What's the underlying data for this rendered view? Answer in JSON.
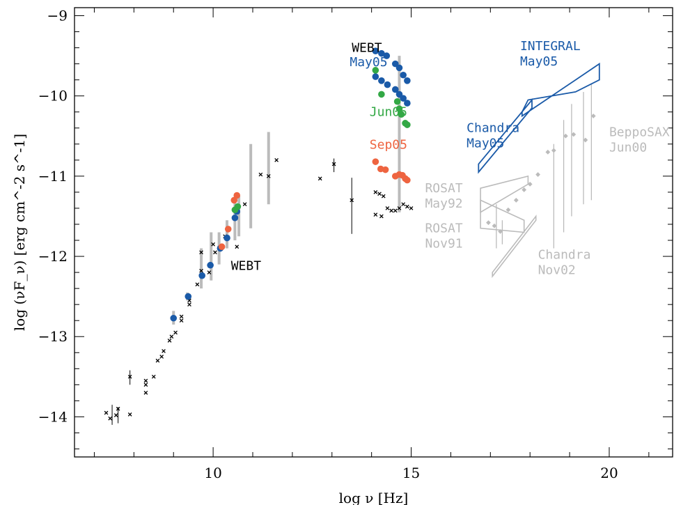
{
  "chart_data": {
    "type": "scatter",
    "xlabel": "log ν [Hz]",
    "ylabel": "log (νF_ν) [erg cm^-2 s^-1]",
    "xlim": [
      6.5,
      21.6
    ],
    "ylim": [
      -14.5,
      -8.9
    ],
    "x_ticks": [
      10,
      15,
      20
    ],
    "y_ticks": [
      -14,
      -13,
      -12,
      -11,
      -10,
      -9
    ],
    "colors": {
      "may05": "#1a5aa8",
      "jun05": "#33a845",
      "sep05": "#ee6440",
      "historic": "#bbbbbb",
      "archive": "#000000"
    },
    "series": [
      {
        "name": "May05",
        "color": "#1a5aa8",
        "points": [
          [
            9.0,
            -12.77
          ],
          [
            9.37,
            -12.5
          ],
          [
            9.72,
            -12.24
          ],
          [
            9.93,
            -12.11
          ],
          [
            10.18,
            -11.9
          ],
          [
            10.35,
            -11.77
          ],
          [
            10.55,
            -11.52
          ],
          [
            10.6,
            -11.44
          ],
          [
            14.1,
            -9.44
          ],
          [
            14.25,
            -9.47
          ],
          [
            14.38,
            -9.5
          ],
          [
            14.6,
            -9.6
          ],
          [
            14.7,
            -9.65
          ],
          [
            14.8,
            -9.74
          ],
          [
            14.9,
            -9.81
          ],
          [
            14.1,
            -9.76
          ],
          [
            14.25,
            -9.81
          ],
          [
            14.4,
            -9.86
          ],
          [
            14.6,
            -9.92
          ],
          [
            14.7,
            -9.98
          ],
          [
            14.8,
            -10.03
          ],
          [
            14.9,
            -10.09
          ]
        ]
      },
      {
        "name": "Jun05",
        "color": "#33a845",
        "points": [
          [
            10.55,
            -11.42
          ],
          [
            10.62,
            -11.38
          ],
          [
            14.1,
            -9.68
          ],
          [
            14.25,
            -9.98
          ],
          [
            14.65,
            -10.07
          ],
          [
            14.7,
            -10.16
          ],
          [
            14.75,
            -10.23
          ],
          [
            14.85,
            -10.34
          ],
          [
            14.9,
            -10.36
          ]
        ]
      },
      {
        "name": "Sep05",
        "color": "#ee6440",
        "points": [
          [
            10.22,
            -11.88
          ],
          [
            10.38,
            -11.66
          ],
          [
            10.53,
            -11.3
          ],
          [
            10.6,
            -11.24
          ],
          [
            14.1,
            -10.82
          ],
          [
            14.23,
            -10.91
          ],
          [
            14.35,
            -10.92
          ],
          [
            14.6,
            -11.0
          ],
          [
            14.7,
            -10.98
          ],
          [
            14.78,
            -10.99
          ],
          [
            14.85,
            -11.03
          ],
          [
            14.9,
            -11.05
          ]
        ]
      }
    ],
    "archive_points": [
      [
        7.3,
        -13.95
      ],
      [
        7.4,
        -14.02
      ],
      [
        7.55,
        -13.98
      ],
      [
        7.6,
        -13.9
      ],
      [
        7.9,
        -13.97
      ],
      [
        7.9,
        -13.5
      ],
      [
        8.3,
        -13.7
      ],
      [
        8.3,
        -13.55
      ],
      [
        8.3,
        -13.6
      ],
      [
        8.5,
        -13.5
      ],
      [
        8.6,
        -13.3
      ],
      [
        8.7,
        -13.25
      ],
      [
        8.75,
        -13.18
      ],
      [
        8.9,
        -13.05
      ],
      [
        8.95,
        -13.0
      ],
      [
        9.05,
        -12.95
      ],
      [
        9.2,
        -12.8
      ],
      [
        9.2,
        -12.75
      ],
      [
        9.4,
        -12.55
      ],
      [
        9.4,
        -12.6
      ],
      [
        9.6,
        -12.35
      ],
      [
        9.7,
        -12.18
      ],
      [
        9.7,
        -11.95
      ],
      [
        9.9,
        -12.2
      ],
      [
        10.0,
        -11.85
      ],
      [
        10.05,
        -11.95
      ],
      [
        10.3,
        -11.75
      ],
      [
        10.6,
        -11.88
      ],
      [
        10.8,
        -11.35
      ],
      [
        11.2,
        -10.98
      ],
      [
        11.4,
        -11.0
      ],
      [
        11.6,
        -10.8
      ],
      [
        12.7,
        -11.03
      ],
      [
        13.05,
        -10.85
      ],
      [
        13.5,
        -11.3
      ],
      [
        14.1,
        -11.2
      ],
      [
        14.2,
        -11.22
      ],
      [
        14.3,
        -11.25
      ],
      [
        14.1,
        -11.48
      ],
      [
        14.25,
        -11.5
      ],
      [
        14.4,
        -11.4
      ],
      [
        14.5,
        -11.43
      ],
      [
        14.6,
        -11.43
      ],
      [
        14.7,
        -11.4
      ],
      [
        14.8,
        -11.35
      ],
      [
        14.9,
        -11.38
      ],
      [
        15.0,
        -11.4
      ]
    ],
    "archive_errorbars": [
      [
        7.45,
        -14.1,
        -13.85
      ],
      [
        7.6,
        -14.08,
        -13.88
      ],
      [
        7.9,
        -13.6,
        -13.42
      ],
      [
        13.05,
        -10.95,
        -10.78
      ],
      [
        13.5,
        -11.72,
        -11.02
      ]
    ],
    "historic_errorbars": [
      [
        9.0,
        -12.85,
        -12.68
      ],
      [
        9.35,
        -12.55,
        -12.45
      ],
      [
        9.7,
        -12.4,
        -11.9
      ],
      [
        9.95,
        -12.3,
        -11.7
      ],
      [
        10.15,
        -12.1,
        -11.7
      ],
      [
        10.35,
        -11.9,
        -11.55
      ],
      [
        10.55,
        -11.8,
        -11.3
      ],
      [
        10.65,
        -11.75,
        -11.25
      ],
      [
        10.95,
        -11.65,
        -10.6
      ],
      [
        11.4,
        -11.35,
        -10.45
      ],
      [
        14.7,
        -11.45,
        -9.5
      ]
    ],
    "beppo_points": [
      [
        16.95,
        -11.58
      ],
      [
        17.1,
        -11.62
      ],
      [
        17.25,
        -11.69
      ],
      [
        17.45,
        -11.42
      ],
      [
        17.65,
        -11.3
      ],
      [
        17.85,
        -11.17
      ],
      [
        18.0,
        -11.1
      ],
      [
        18.2,
        -10.98
      ],
      [
        18.45,
        -10.7
      ],
      [
        18.6,
        -10.68
      ],
      [
        18.9,
        -10.5
      ],
      [
        19.1,
        -10.48
      ],
      [
        19.4,
        -10.55
      ],
      [
        19.6,
        -10.25
      ]
    ],
    "beppo_errorbars": [
      [
        17.15,
        -11.9,
        -11.35
      ],
      [
        17.3,
        -11.85,
        -11.55
      ],
      [
        18.6,
        -11.9,
        -10.6
      ],
      [
        18.85,
        -11.7,
        -10.3
      ],
      [
        19.05,
        -11.5,
        -10.1
      ],
      [
        19.35,
        -11.35,
        -9.95
      ],
      [
        19.55,
        -11.3,
        -9.85
      ]
    ],
    "bowties": [
      {
        "name": "INTEGRAL May05",
        "color": "#1a5aa8",
        "polygon": [
          [
            17.8,
            -10.2
          ],
          [
            17.8,
            -10.25
          ],
          [
            19.15,
            -9.8
          ],
          [
            19.75,
            -9.6
          ],
          [
            19.75,
            -9.8
          ],
          [
            19.15,
            -9.95
          ],
          [
            17.95,
            -10.05
          ]
        ]
      },
      {
        "name": "Chandra May05",
        "color": "#1a5aa8",
        "polygon": [
          [
            16.7,
            -10.85
          ],
          [
            18.05,
            -10.05
          ],
          [
            18.05,
            -10.15
          ],
          [
            16.7,
            -10.95
          ]
        ]
      },
      {
        "name": "ROSAT May92",
        "color": "#bbbbbb",
        "polygon": [
          [
            16.75,
            -11.15
          ],
          [
            17.95,
            -11.0
          ],
          [
            17.95,
            -11.1
          ],
          [
            16.75,
            -11.45
          ]
        ]
      },
      {
        "name": "ROSAT Nov91",
        "color": "#bbbbbb",
        "polygon": [
          [
            16.75,
            -11.3
          ],
          [
            17.85,
            -11.55
          ],
          [
            17.85,
            -11.7
          ],
          [
            16.75,
            -11.65
          ]
        ]
      },
      {
        "name": "Chandra Nov02",
        "color": "#bbbbbb",
        "polygon": [
          [
            17.05,
            -12.2
          ],
          [
            18.15,
            -11.5
          ],
          [
            18.15,
            -11.55
          ],
          [
            17.05,
            -12.25
          ]
        ]
      }
    ],
    "annotations": [
      {
        "id": "webt-top",
        "lines": [
          "WEBT"
        ],
        "color": "#000000",
        "x": 13.5,
        "y": -9.45
      },
      {
        "id": "may05-top",
        "lines": [
          "May05"
        ],
        "color": "#1a5aa8",
        "x": 13.45,
        "y": -9.63
      },
      {
        "id": "jun05",
        "lines": [
          "Jun05"
        ],
        "color": "#33a845",
        "x": 13.95,
        "y": -10.25
      },
      {
        "id": "sep05",
        "lines": [
          "Sep05"
        ],
        "color": "#ee6440",
        "x": 13.95,
        "y": -10.66
      },
      {
        "id": "integral",
        "lines": [
          "INTEGRAL",
          "May05"
        ],
        "color": "#1a5aa8",
        "x": 17.75,
        "y": -9.43
      },
      {
        "id": "chandra-may05",
        "lines": [
          "Chandra",
          "May05"
        ],
        "color": "#1a5aa8",
        "x": 16.4,
        "y": -10.45
      },
      {
        "id": "beppo",
        "lines": [
          "BeppoSAX",
          "Jun00"
        ],
        "color": "#bbbbbb",
        "x": 20.0,
        "y": -10.5
      },
      {
        "id": "rosat-may92",
        "lines": [
          "ROSAT",
          "May92"
        ],
        "color": "#bbbbbb",
        "x": 15.35,
        "y": -11.2
      },
      {
        "id": "rosat-nov91",
        "lines": [
          "ROSAT",
          "Nov91"
        ],
        "color": "#bbbbbb",
        "x": 15.35,
        "y": -11.7
      },
      {
        "id": "chandra-nov02",
        "lines": [
          "Chandra",
          "Nov02"
        ],
        "color": "#bbbbbb",
        "x": 18.2,
        "y": -12.03
      },
      {
        "id": "webt-low",
        "lines": [
          "WEBT"
        ],
        "color": "#000000",
        "x": 10.45,
        "y": -12.17
      }
    ]
  }
}
